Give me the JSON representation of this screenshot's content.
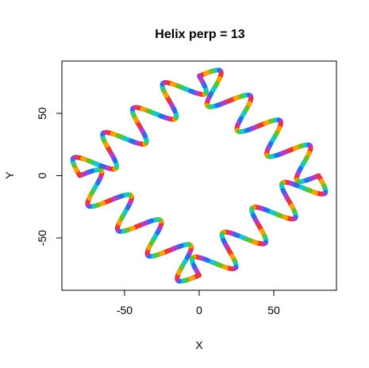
{
  "chart_data": {
    "type": "line",
    "title": "Helix perp = 13",
    "xlabel": "X",
    "ylabel": "Y",
    "xlim": [
      -92,
      92
    ],
    "ylim": [
      -92,
      92
    ],
    "xticks": [
      -50,
      0,
      50
    ],
    "yticks": [
      -50,
      0,
      50
    ],
    "xtick_labels": [
      "-50",
      "0",
      "50"
    ],
    "ytick_labels": [
      "-50",
      "0",
      "50"
    ],
    "grid": false,
    "legend": "none",
    "curve": {
      "description_values": {
        "base_shape": "diamond with vertices at (0,80), (80,0), (0,-80), (-80,0)",
        "perpendicular_amplitude": 13,
        "waves_per_edge": 4
      },
      "colors": [
        "#E53935",
        "#F4A300",
        "#5BC236",
        "#1BC6C6",
        "#2E6BE6",
        "#B03CC8"
      ]
    }
  }
}
